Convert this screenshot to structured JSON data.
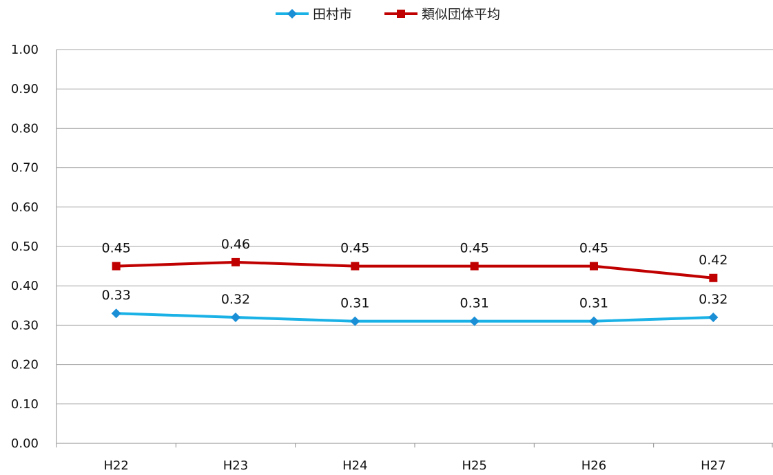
{
  "chart_data": {
    "type": "line",
    "categories": [
      "H22",
      "H23",
      "H24",
      "H25",
      "H26",
      "H27"
    ],
    "series": [
      {
        "name": "田村市",
        "values": [
          0.33,
          0.32,
          0.31,
          0.31,
          0.31,
          0.32
        ],
        "color": "#1ab2e6",
        "marker": "diamond"
      },
      {
        "name": "類似団体平均",
        "values": [
          0.45,
          0.46,
          0.45,
          0.45,
          0.45,
          0.42
        ],
        "color": "#c00000",
        "marker": "square"
      }
    ],
    "title": "",
    "xlabel": "",
    "ylabel": "",
    "ylim": [
      0,
      1
    ],
    "yticks": [
      "0.00",
      "0.10",
      "0.20",
      "0.30",
      "0.40",
      "0.50",
      "0.60",
      "0.70",
      "0.80",
      "0.90",
      "1.00"
    ],
    "data_labels": [
      [
        "0.33",
        "0.32",
        "0.31",
        "0.31",
        "0.31",
        "0.32"
      ],
      [
        "0.45",
        "0.46",
        "0.45",
        "0.45",
        "0.45",
        "0.42"
      ]
    ],
    "grid": true,
    "legend_position": "top-center"
  }
}
